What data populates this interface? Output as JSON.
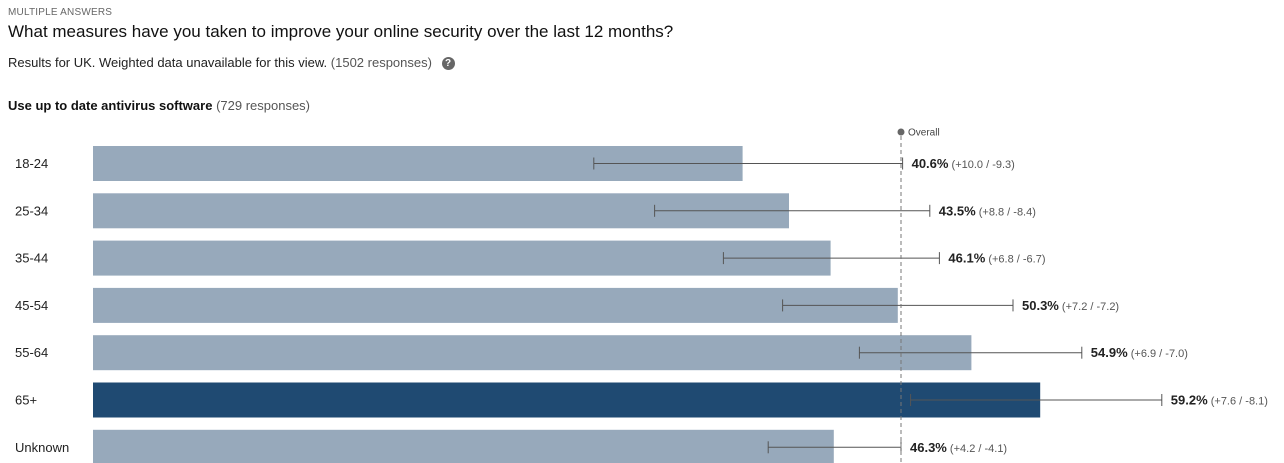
{
  "header": {
    "eyebrow": "MULTIPLE ANSWERS",
    "question": "What measures have you taken to improve your online security over the last 12 months?",
    "meta_text": "Results for UK. Weighted data unavailable for this view.",
    "meta_count": "(1502 responses)",
    "help_icon": "question-circle-icon"
  },
  "answer": {
    "label": "Use up to date antivirus software",
    "count": "(729 responses)"
  },
  "colors": {
    "bar": "#97a9bb",
    "bar_highlight": "#1f4a72",
    "error_bar": "#555555",
    "overall_line": "#777777"
  },
  "chart_data": {
    "type": "bar",
    "orientation": "horizontal",
    "categories": [
      "18-24",
      "25-34",
      "35-44",
      "45-54",
      "55-64",
      "65+",
      "Unknown"
    ],
    "values": [
      40.6,
      43.5,
      46.1,
      50.3,
      54.9,
      59.2,
      46.3
    ],
    "value_labels": [
      "40.6%",
      "43.5%",
      "46.1%",
      "50.3%",
      "54.9%",
      "59.2%",
      "46.3%"
    ],
    "error_labels": [
      "(+10.0 / -9.3)",
      "(+8.8 / -8.4)",
      "(+6.8 / -6.7)",
      "(+7.2 / -7.2)",
      "(+6.9 / -7.0)",
      "(+7.6 / -8.1)",
      "(+4.2 / -4.1)"
    ],
    "error_plus": [
      10.0,
      8.8,
      6.8,
      7.2,
      6.9,
      7.6,
      4.2
    ],
    "error_minus": [
      9.3,
      8.4,
      6.7,
      7.2,
      7.0,
      8.1,
      4.1
    ],
    "highlighted_category": "65+",
    "overall_marker_label": "Overall",
    "overall_value": 50.5,
    "xlim": [
      0,
      80
    ],
    "grid": false
  }
}
